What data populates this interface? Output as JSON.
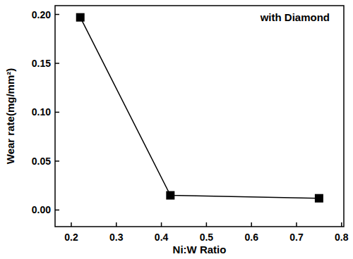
{
  "chart_data": {
    "type": "line",
    "x_label": "Ni:W Ratio",
    "y_label": "Wear rate(mg/mm²)",
    "annotations": [
      "with Diamond"
    ],
    "series": [
      {
        "name": "with Diamond",
        "color": "#000000",
        "marker": "square",
        "line_style": "solid",
        "x": [
          0.22,
          0.42,
          0.75
        ],
        "values": [
          0.197,
          0.015,
          0.012
        ]
      }
    ],
    "xlim": [
      0.164,
      0.805
    ],
    "xticks": [
      0.2,
      0.3,
      0.4,
      0.5,
      0.6,
      0.7,
      0.8
    ],
    "ylim": [
      -0.017,
      0.209
    ],
    "yticks": [
      {
        "value": 0,
        "label": "0.00"
      },
      0.05,
      {
        "value": 0.1,
        "label": "0.10"
      },
      0.15,
      {
        "value": 0.2,
        "label": "0.20"
      }
    ],
    "grid": false
  }
}
